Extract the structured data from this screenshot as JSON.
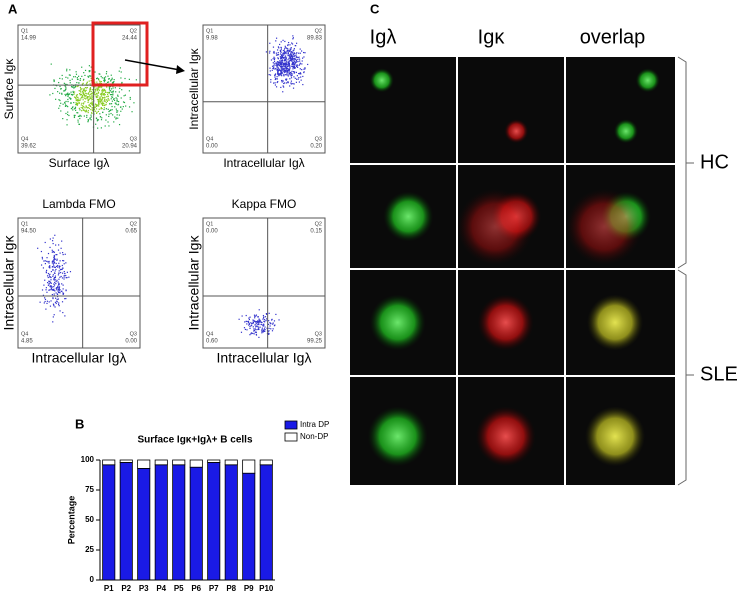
{
  "panel_a": {
    "label": "A",
    "plots": [
      {
        "y_label": "Surface Igκ",
        "x_label": "Surface Igλ",
        "quadrants": [
          {
            "name": "Q1",
            "value": "14.99"
          },
          {
            "name": "Q2",
            "value": "24.44"
          },
          {
            "name": "Q4",
            "value": "39.62"
          },
          {
            "name": "Q3",
            "value": "20.94"
          }
        ]
      },
      {
        "y_label": "Intracellular Igκ",
        "x_label": "Intracellular Igλ",
        "quadrants": [
          {
            "name": "Q1",
            "value": "9.98"
          },
          {
            "name": "Q2",
            "value": "89.83"
          },
          {
            "name": "Q4",
            "value": "0.00"
          },
          {
            "name": "Q3",
            "value": "0.20"
          }
        ]
      },
      {
        "title": "Lambda FMO",
        "y_label": "Intracellular Igκ",
        "x_label": "Intracellular Igλ",
        "quadrants": [
          {
            "name": "Q1",
            "value": "94.50"
          },
          {
            "name": "Q2",
            "value": "0.65"
          },
          {
            "name": "Q4",
            "value": "4.85"
          },
          {
            "name": "Q3",
            "value": "0.00"
          }
        ]
      },
      {
        "title": "Kappa FMO",
        "y_label": "Intracellular Igκ",
        "x_label": "Intracellular Igλ",
        "quadrants": [
          {
            "name": "Q1",
            "value": "0.00"
          },
          {
            "name": "Q2",
            "value": "0.15"
          },
          {
            "name": "Q4",
            "value": "0.60"
          },
          {
            "name": "Q3",
            "value": "99.25"
          }
        ]
      }
    ]
  },
  "panel_b": {
    "label": "B",
    "chart": {
      "type": "bar",
      "stacked": true,
      "title": "Surface Igκ+Igλ+ B cells",
      "y_label": "Percentage",
      "categories": [
        "P1",
        "P2",
        "P3",
        "P4",
        "P5",
        "P6",
        "P7",
        "P8",
        "P9",
        "P10"
      ],
      "series": [
        {
          "name": "Intra DP",
          "color": "#1a1ae6",
          "values": [
            96,
            98,
            93,
            96,
            96,
            94,
            98,
            96,
            89,
            96
          ]
        },
        {
          "name": "Non-DP",
          "color": "#ffffff",
          "values": [
            4,
            2,
            7,
            4,
            4,
            6,
            2,
            4,
            11,
            4
          ]
        }
      ],
      "ylim": [
        0,
        100
      ],
      "yticks": [
        0,
        25,
        50,
        75,
        100
      ]
    }
  },
  "panel_c": {
    "label": "C",
    "columns": [
      "Igλ",
      "Igκ",
      "overlap"
    ],
    "groups": [
      "HC",
      "SLE"
    ]
  }
}
